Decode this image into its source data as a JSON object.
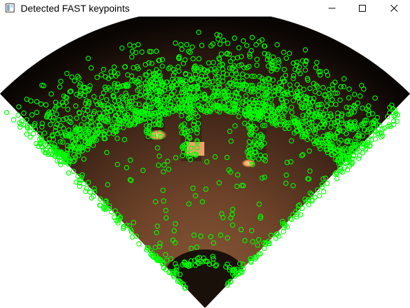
{
  "window": {
    "title": "Detected FAST keypoints",
    "controls": {
      "minimize": "minimize",
      "maximize": "maximize",
      "close": "close"
    }
  },
  "image": {
    "description_icons": [
      "app-icon",
      "minimize-icon",
      "maximize-icon",
      "close-icon"
    ],
    "colors": {
      "keypoint": "#00ff00",
      "sonar_dark": "#1a0f0a",
      "sonar_mid": "#5a3520",
      "sonar_light": "#8a5a3a",
      "highlight": "#ffb070"
    }
  }
}
